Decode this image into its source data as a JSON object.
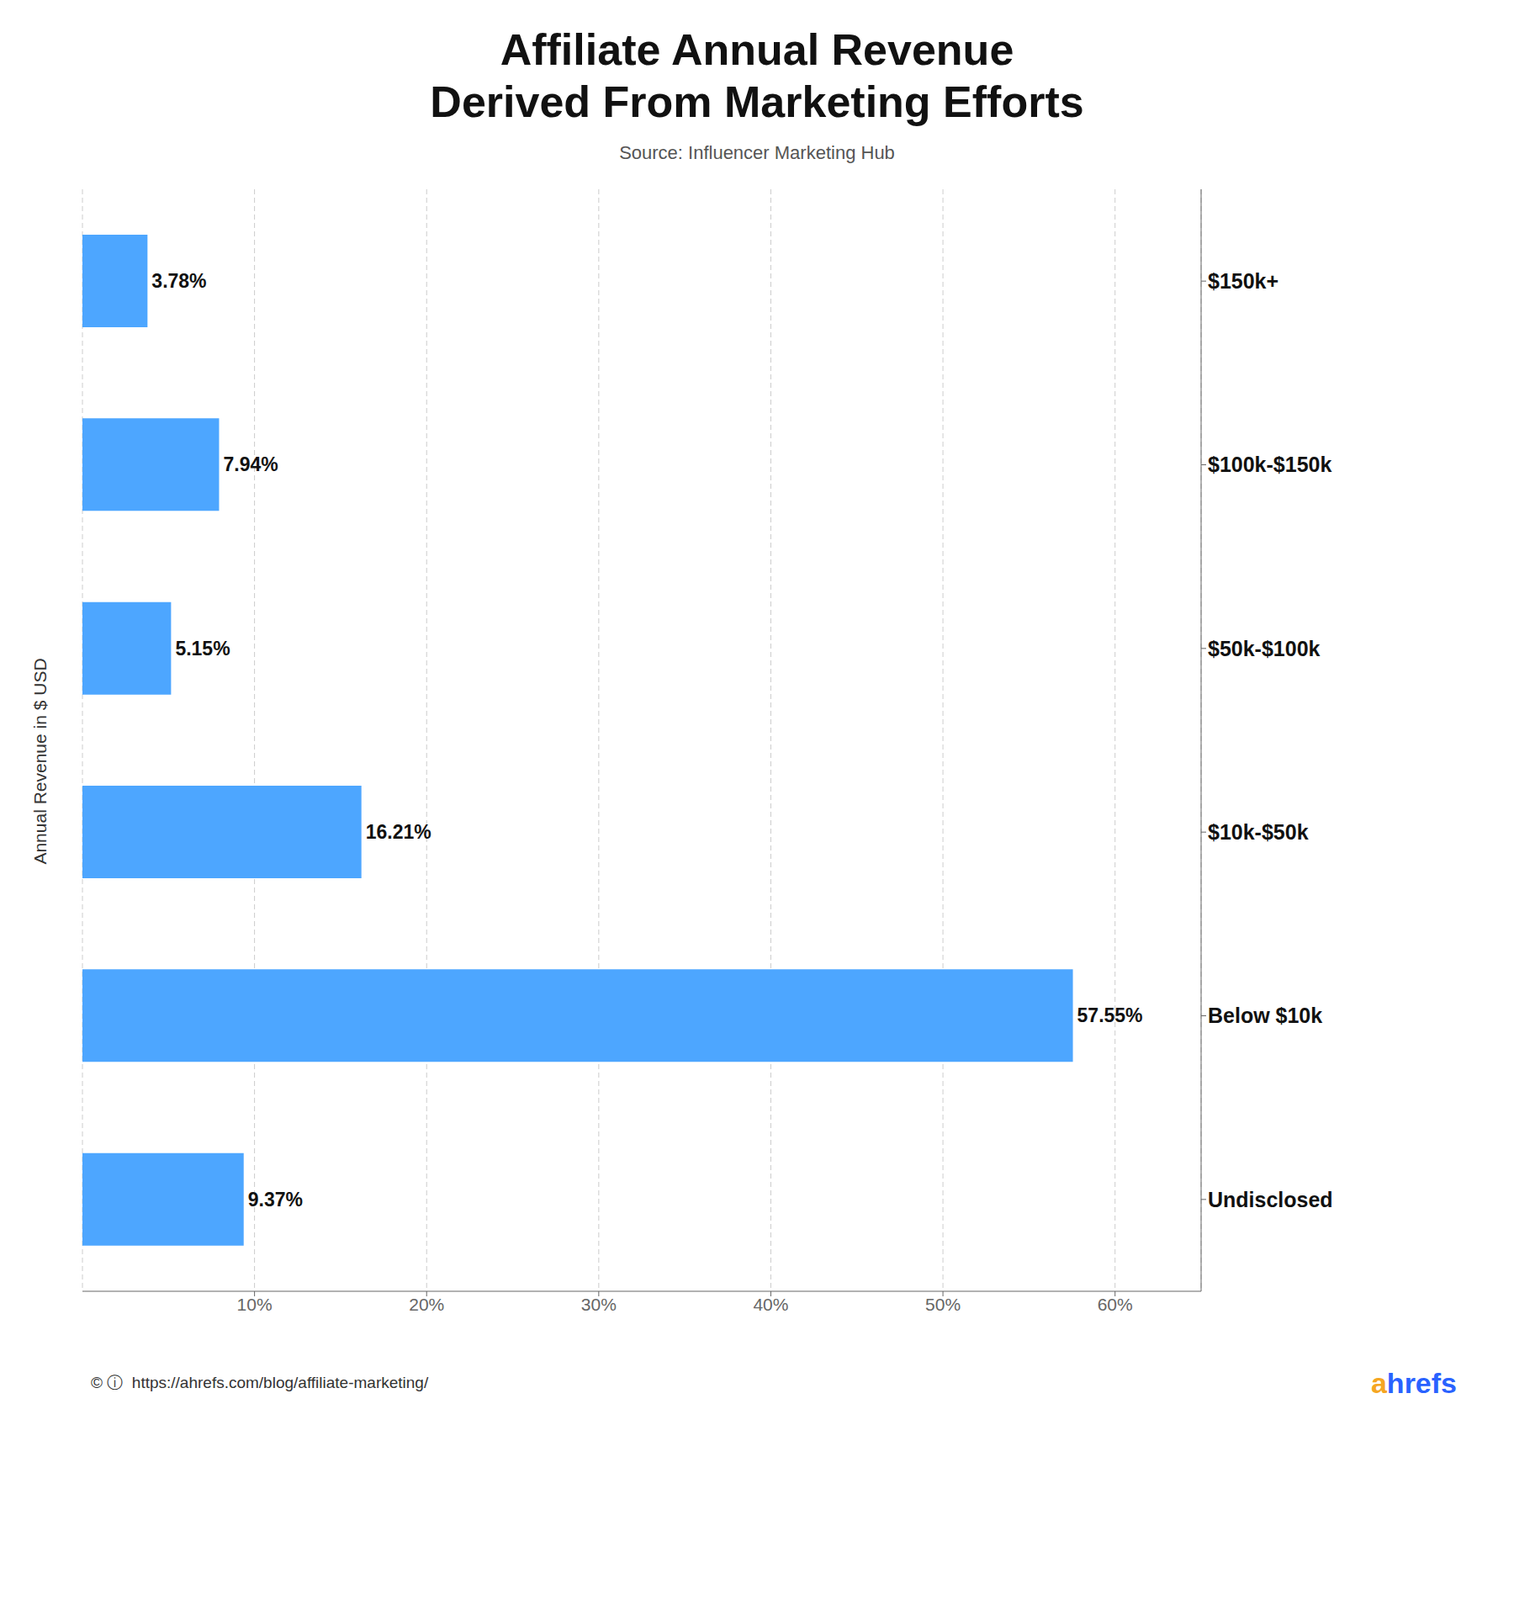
{
  "chart_data": {
    "type": "bar",
    "orientation": "horizontal",
    "title": "Affiliate Annual Revenue\nDerived From Marketing Efforts",
    "subtitle": "Source: Influencer Marketing Hub",
    "ylabel": "Annual Revenue in $ USD",
    "categories": [
      "$150k+",
      "$100k-$150k",
      "$50k-$100k",
      "$10k-$50k",
      "Below $10k",
      "Undisclosed"
    ],
    "values": [
      3.78,
      7.94,
      5.15,
      16.21,
      57.55,
      9.37
    ],
    "value_labels": [
      "3.78%",
      "7.94%",
      "5.15%",
      "16.21%",
      "57.55%",
      "9.37%"
    ],
    "data_labels": true,
    "color": "#4DA6FF",
    "xlim": [
      0,
      65
    ],
    "xticks": [
      {
        "value": 10,
        "label": "10%"
      },
      {
        "value": 20,
        "label": "20%"
      },
      {
        "value": 30,
        "label": "30%"
      },
      {
        "value": 40,
        "label": "40%"
      },
      {
        "value": 50,
        "label": "50%"
      },
      {
        "value": 60,
        "label": "60%"
      }
    ],
    "grid": true,
    "annotations": [
      {
        "text": "© ⓘ  https://ahrefs.com/blog/affiliate-marketing/"
      },
      {
        "text": "a",
        "color": "#F5A623"
      },
      {
        "text": "hrefs",
        "color": "#2962FF"
      }
    ]
  }
}
